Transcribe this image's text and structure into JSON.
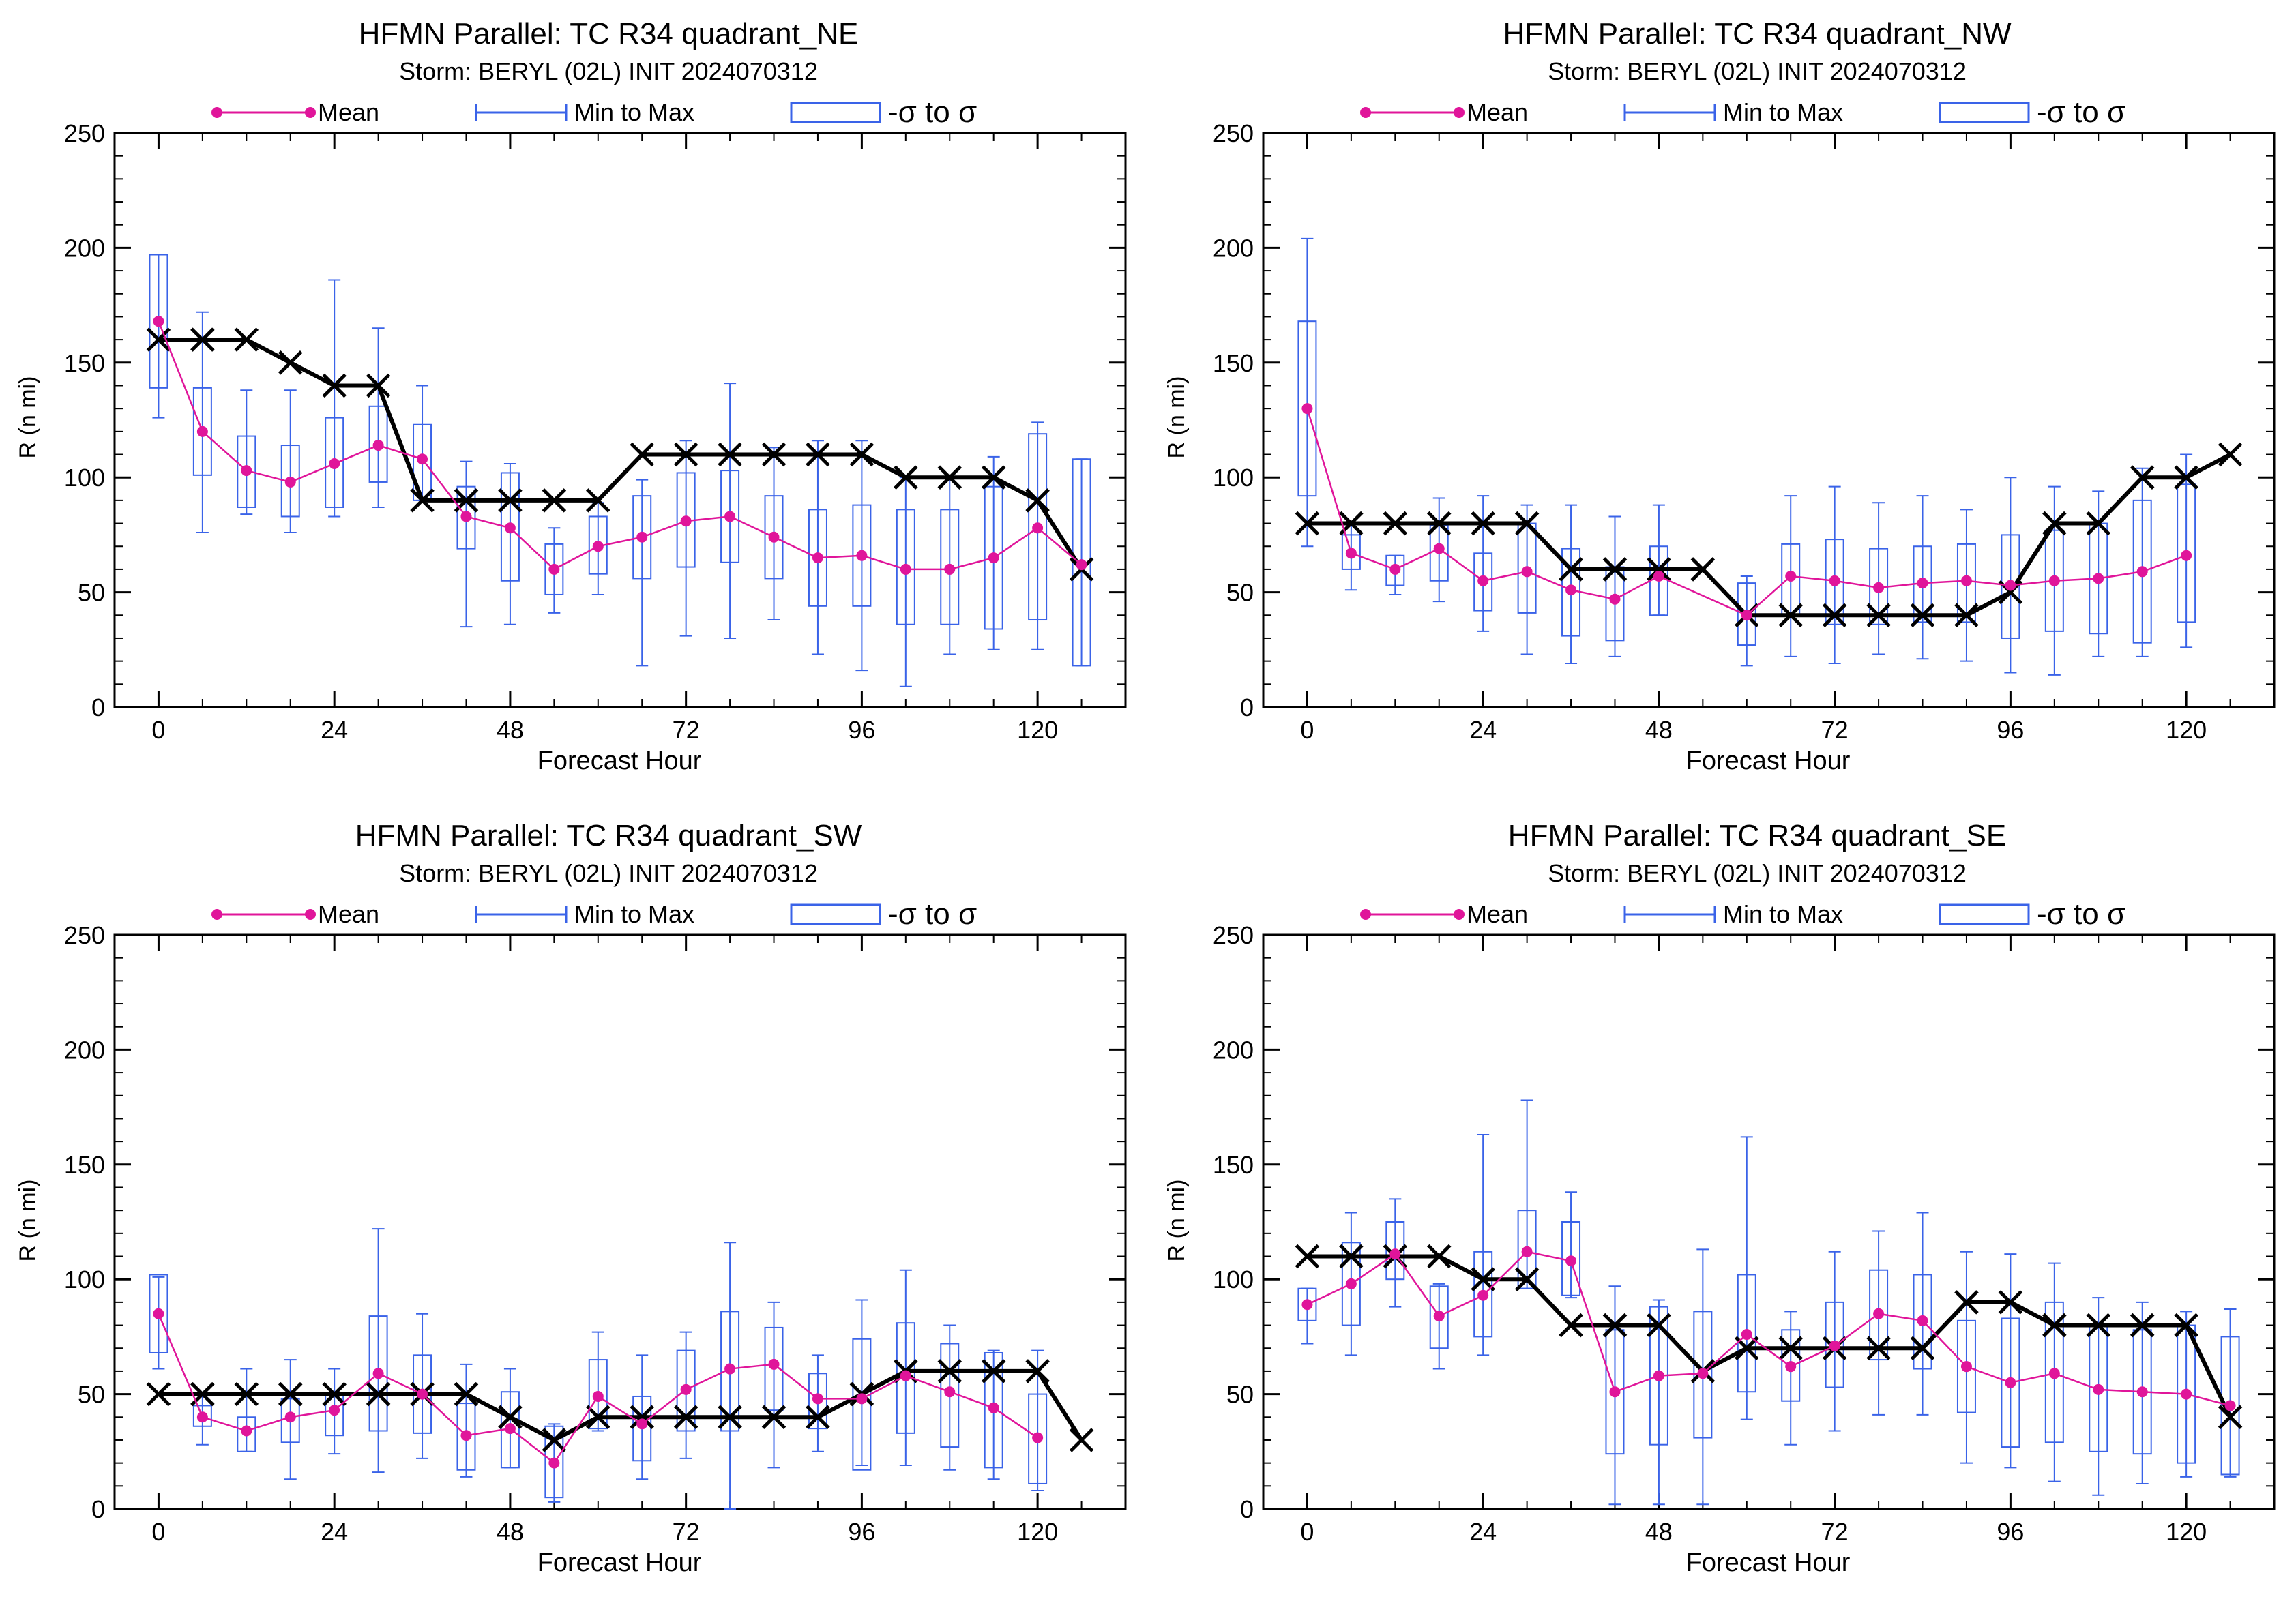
{
  "chart_data": [
    {
      "type": "line",
      "title": "HFMN Parallel: TC  R34 quadrant_NE",
      "subtitle": "Storm: BERYL (02L) INIT 2024070312",
      "xlabel": "Forecast Hour",
      "ylabel": "R (n mi)",
      "xlim": [
        -6,
        132
      ],
      "ylim": [
        0,
        250
      ],
      "xticks": [
        0,
        24,
        48,
        72,
        96,
        120
      ],
      "yticks": [
        0,
        50,
        100,
        150,
        200,
        250
      ],
      "legend": {
        "position": "top",
        "entries": [
          "Mean",
          "Min to Max",
          "-σ to σ"
        ]
      },
      "series": [
        {
          "name": "Mean",
          "color": "#e0159a",
          "x": [
            0,
            6,
            12,
            18,
            24,
            30,
            36,
            42,
            48,
            54,
            60,
            66,
            72,
            78,
            84,
            90,
            96,
            102,
            108,
            114,
            120,
            126
          ],
          "values": [
            168,
            120,
            103,
            98,
            106,
            114,
            108,
            83,
            78,
            60,
            70,
            74,
            81,
            83,
            74,
            65,
            66,
            60,
            60,
            65,
            78,
            62
          ]
        },
        {
          "name": "Min to Max",
          "color": "#3a63e8",
          "x": [
            0,
            6,
            12,
            18,
            24,
            30,
            36,
            42,
            48,
            54,
            60,
            66,
            72,
            78,
            84,
            90,
            96,
            102,
            108,
            114,
            120,
            126
          ],
          "min": [
            126,
            76,
            84,
            76,
            83,
            87,
            90,
            35,
            36,
            41,
            49,
            18,
            31,
            30,
            38,
            23,
            16,
            9,
            23,
            25,
            25,
            18
          ],
          "max": [
            197,
            172,
            138,
            138,
            186,
            165,
            140,
            107,
            106,
            78,
            89,
            99,
            116,
            141,
            113,
            116,
            116,
            100,
            100,
            109,
            124,
            108
          ]
        },
        {
          "name": "-σ to σ",
          "color": "#3a63e8",
          "x": [
            0,
            6,
            12,
            18,
            24,
            30,
            36,
            42,
            48,
            54,
            60,
            66,
            72,
            78,
            84,
            90,
            96,
            102,
            108,
            114,
            120,
            126
          ],
          "low": [
            139,
            101,
            87,
            83,
            87,
            98,
            90,
            69,
            55,
            49,
            58,
            56,
            61,
            63,
            56,
            44,
            44,
            36,
            36,
            34,
            38,
            18
          ],
          "high": [
            197,
            139,
            118,
            114,
            126,
            131,
            123,
            96,
            102,
            71,
            83,
            92,
            102,
            103,
            92,
            86,
            88,
            86,
            86,
            96,
            119,
            108
          ]
        },
        {
          "name": "",
          "color": "#000000",
          "x": [
            0,
            6,
            12,
            18,
            24,
            30,
            36,
            42,
            48,
            54,
            60,
            66,
            72,
            78,
            84,
            90,
            96,
            102,
            108,
            114,
            120,
            126
          ],
          "values": [
            160,
            160,
            160,
            150,
            140,
            140,
            90,
            90,
            90,
            90,
            90,
            110,
            110,
            110,
            110,
            110,
            110,
            100,
            100,
            100,
            90,
            60
          ]
        }
      ]
    },
    {
      "type": "line",
      "title": "HFMN Parallel: TC  R34 quadrant_NW",
      "subtitle": "Storm: BERYL (02L) INIT 2024070312",
      "xlabel": "Forecast Hour",
      "ylabel": "R (n mi)",
      "xlim": [
        -6,
        132
      ],
      "ylim": [
        0,
        250
      ],
      "xticks": [
        0,
        24,
        48,
        72,
        96,
        120
      ],
      "yticks": [
        0,
        50,
        100,
        150,
        200,
        250
      ],
      "legend": {
        "position": "top",
        "entries": [
          "Mean",
          "Min to Max",
          "-σ to σ"
        ]
      },
      "series": [
        {
          "name": "Mean",
          "color": "#e0159a",
          "x": [
            0,
            6,
            12,
            18,
            24,
            30,
            36,
            42,
            48,
            60,
            66,
            72,
            78,
            84,
            90,
            96,
            102,
            108,
            114,
            120
          ],
          "values": [
            130,
            67,
            60,
            69,
            55,
            59,
            51,
            47,
            57,
            40,
            57,
            55,
            52,
            54,
            55,
            53,
            55,
            56,
            59,
            66
          ]
        },
        {
          "name": "Min to Max",
          "color": "#3a63e8",
          "x": [
            0,
            6,
            12,
            18,
            24,
            30,
            36,
            42,
            48,
            60,
            66,
            72,
            78,
            84,
            90,
            96,
            102,
            108,
            114,
            120
          ],
          "min": [
            70,
            51,
            49,
            46,
            33,
            23,
            19,
            22,
            40,
            18,
            22,
            19,
            23,
            21,
            20,
            15,
            14,
            22,
            22,
            26
          ],
          "max": [
            204,
            80,
            66,
            91,
            92,
            88,
            88,
            83,
            88,
            57,
            92,
            96,
            89,
            92,
            86,
            100,
            96,
            94,
            104,
            110
          ]
        },
        {
          "name": "-σ to σ",
          "color": "#3a63e8",
          "x": [
            0,
            6,
            12,
            18,
            24,
            30,
            36,
            42,
            48,
            60,
            66,
            72,
            78,
            84,
            90,
            96,
            102,
            108,
            114,
            120
          ],
          "low": [
            92,
            60,
            53,
            55,
            42,
            41,
            31,
            29,
            40,
            27,
            40,
            36,
            36,
            37,
            37,
            30,
            33,
            32,
            28,
            37
          ],
          "high": [
            168,
            75,
            66,
            79,
            67,
            80,
            69,
            61,
            70,
            54,
            71,
            73,
            69,
            70,
            71,
            75,
            77,
            80,
            90,
            97
          ]
        },
        {
          "name": "",
          "color": "#000000",
          "x": [
            0,
            6,
            12,
            18,
            24,
            30,
            36,
            42,
            48,
            54,
            60,
            66,
            72,
            78,
            84,
            90,
            96,
            102,
            108,
            114,
            120,
            126
          ],
          "values": [
            80,
            80,
            80,
            80,
            80,
            80,
            60,
            60,
            60,
            60,
            40,
            40,
            40,
            40,
            40,
            40,
            50,
            80,
            80,
            100,
            100,
            110
          ]
        }
      ]
    },
    {
      "type": "line",
      "title": "HFMN Parallel: TC  R34 quadrant_SW",
      "subtitle": "Storm: BERYL (02L) INIT 2024070312",
      "xlabel": "Forecast Hour",
      "ylabel": "R (n mi)",
      "xlim": [
        -6,
        132
      ],
      "ylim": [
        0,
        250
      ],
      "xticks": [
        0,
        24,
        48,
        72,
        96,
        120
      ],
      "yticks": [
        0,
        50,
        100,
        150,
        200,
        250
      ],
      "legend": {
        "position": "top",
        "entries": [
          "Mean",
          "Min to Max",
          "-σ to σ"
        ]
      },
      "series": [
        {
          "name": "Mean",
          "color": "#e0159a",
          "x": [
            0,
            6,
            12,
            18,
            24,
            30,
            36,
            42,
            48,
            54,
            60,
            66,
            72,
            78,
            84,
            90,
            96,
            102,
            108,
            114,
            120
          ],
          "values": [
            85,
            40,
            34,
            40,
            43,
            59,
            50,
            32,
            35,
            20,
            49,
            37,
            52,
            61,
            63,
            48,
            48,
            58,
            51,
            44,
            31
          ]
        },
        {
          "name": "Min to Max",
          "color": "#3a63e8",
          "x": [
            0,
            6,
            12,
            18,
            24,
            30,
            36,
            42,
            48,
            54,
            60,
            66,
            72,
            78,
            84,
            90,
            96,
            102,
            108,
            114,
            120
          ],
          "min": [
            61,
            28,
            25,
            13,
            24,
            16,
            22,
            14,
            18,
            3,
            34,
            13,
            22,
            0,
            18,
            25,
            19,
            19,
            17,
            13,
            8
          ],
          "max": [
            101,
            50,
            61,
            65,
            61,
            122,
            85,
            63,
            61,
            37,
            77,
            67,
            77,
            116,
            90,
            67,
            91,
            104,
            80,
            69,
            69
          ]
        },
        {
          "name": "-σ to σ",
          "color": "#3a63e8",
          "x": [
            0,
            6,
            12,
            18,
            24,
            30,
            36,
            42,
            48,
            54,
            60,
            66,
            72,
            78,
            84,
            90,
            96,
            102,
            108,
            114,
            120
          ],
          "low": [
            68,
            36,
            25,
            29,
            32,
            34,
            33,
            17,
            18,
            5,
            35,
            21,
            34,
            34,
            43,
            35,
            17,
            33,
            27,
            18,
            11
          ],
          "high": [
            102,
            45,
            40,
            48,
            50,
            84,
            67,
            46,
            51,
            36,
            65,
            49,
            69,
            86,
            79,
            59,
            74,
            81,
            72,
            68,
            50
          ]
        },
        {
          "name": "",
          "color": "#000000",
          "x": [
            0,
            6,
            12,
            18,
            24,
            30,
            36,
            42,
            48,
            54,
            60,
            66,
            72,
            78,
            84,
            90,
            96,
            102,
            108,
            114,
            120,
            126
          ],
          "values": [
            50,
            50,
            50,
            50,
            50,
            50,
            50,
            50,
            40,
            30,
            40,
            40,
            40,
            40,
            40,
            40,
            50,
            60,
            60,
            60,
            60,
            30
          ]
        }
      ]
    },
    {
      "type": "line",
      "title": "HFMN Parallel: TC  R34 quadrant_SE",
      "subtitle": "Storm: BERYL (02L) INIT 2024070312",
      "xlabel": "Forecast Hour",
      "ylabel": "R (n mi)",
      "xlim": [
        -6,
        132
      ],
      "ylim": [
        0,
        250
      ],
      "xticks": [
        0,
        24,
        48,
        72,
        96,
        120
      ],
      "yticks": [
        0,
        50,
        100,
        150,
        200,
        250
      ],
      "legend": {
        "position": "top",
        "entries": [
          "Mean",
          "Min to Max",
          "-σ to σ"
        ]
      },
      "series": [
        {
          "name": "Mean",
          "color": "#e0159a",
          "x": [
            0,
            6,
            12,
            18,
            24,
            30,
            36,
            42,
            48,
            54,
            60,
            66,
            72,
            78,
            84,
            90,
            96,
            102,
            108,
            114,
            120,
            126
          ],
          "values": [
            89,
            98,
            111,
            84,
            93,
            112,
            108,
            51,
            58,
            59,
            76,
            62,
            71,
            85,
            82,
            62,
            55,
            59,
            52,
            51,
            50,
            45
          ]
        },
        {
          "name": "Min to Max",
          "color": "#3a63e8",
          "x": [
            0,
            6,
            12,
            18,
            24,
            30,
            36,
            42,
            48,
            54,
            60,
            66,
            72,
            78,
            84,
            90,
            96,
            102,
            108,
            114,
            120,
            126
          ],
          "min": [
            72,
            67,
            88,
            61,
            67,
            96,
            92,
            2,
            2,
            2,
            39,
            28,
            34,
            41,
            41,
            20,
            18,
            12,
            6,
            11,
            14,
            14
          ],
          "max": [
            96,
            129,
            135,
            98,
            163,
            178,
            138,
            97,
            91,
            113,
            162,
            86,
            112,
            121,
            129,
            112,
            111,
            107,
            92,
            90,
            86,
            87
          ]
        },
        {
          "name": "-σ to σ",
          "color": "#3a63e8",
          "x": [
            0,
            6,
            12,
            18,
            24,
            30,
            36,
            42,
            48,
            54,
            60,
            66,
            72,
            78,
            84,
            90,
            96,
            102,
            108,
            114,
            120,
            126
          ],
          "low": [
            82,
            80,
            100,
            70,
            75,
            96,
            93,
            24,
            28,
            31,
            51,
            47,
            53,
            65,
            61,
            42,
            27,
            29,
            25,
            24,
            20,
            15
          ],
          "high": [
            96,
            116,
            125,
            97,
            112,
            130,
            125,
            78,
            88,
            86,
            102,
            78,
            90,
            104,
            102,
            82,
            83,
            90,
            80,
            78,
            80,
            75
          ]
        },
        {
          "name": "",
          "color": "#000000",
          "x": [
            0,
            6,
            12,
            18,
            24,
            30,
            36,
            42,
            48,
            54,
            60,
            66,
            72,
            78,
            84,
            90,
            96,
            102,
            108,
            114,
            120,
            126
          ],
          "values": [
            110,
            110,
            110,
            110,
            100,
            100,
            80,
            80,
            80,
            60,
            70,
            70,
            70,
            70,
            70,
            90,
            90,
            80,
            80,
            80,
            80,
            40
          ]
        }
      ]
    }
  ]
}
